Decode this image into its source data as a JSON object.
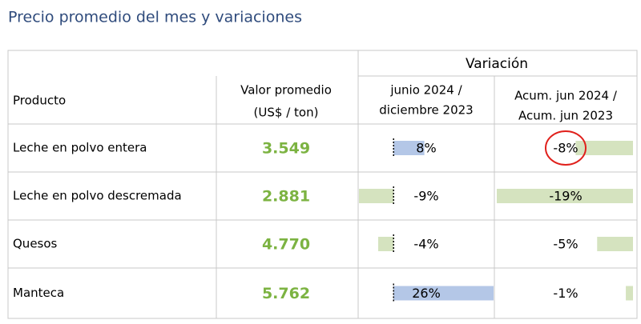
{
  "title": "Precio promedio del mes y variaciones",
  "table": {
    "group_header": "Variación",
    "headers": {
      "product": "Producto",
      "value": [
        "Valor promedio",
        "(US$ / ton)"
      ],
      "var_month": [
        "junio 2024 /",
        "diciembre 2023"
      ],
      "var_acum": [
        "Acum. jun 2024 /",
        "Acum. jun 2023"
      ]
    },
    "products": [
      "Leche en polvo entera",
      "Leche en polvo descremada",
      "Quesos",
      "Manteca"
    ],
    "values": [
      "3.549",
      "2.881",
      "4.770",
      "5.762"
    ],
    "var_month": {
      "values": [
        8,
        -9,
        -4,
        26
      ],
      "value_labels": [
        "8%",
        "-9%",
        "-4%",
        "26%"
      ]
    },
    "var_acum": {
      "values": [
        -8,
        -19,
        -5,
        -1
      ],
      "value_labels": [
        "-8%",
        "-19%",
        "-5%",
        "-1%"
      ]
    }
  }
}
